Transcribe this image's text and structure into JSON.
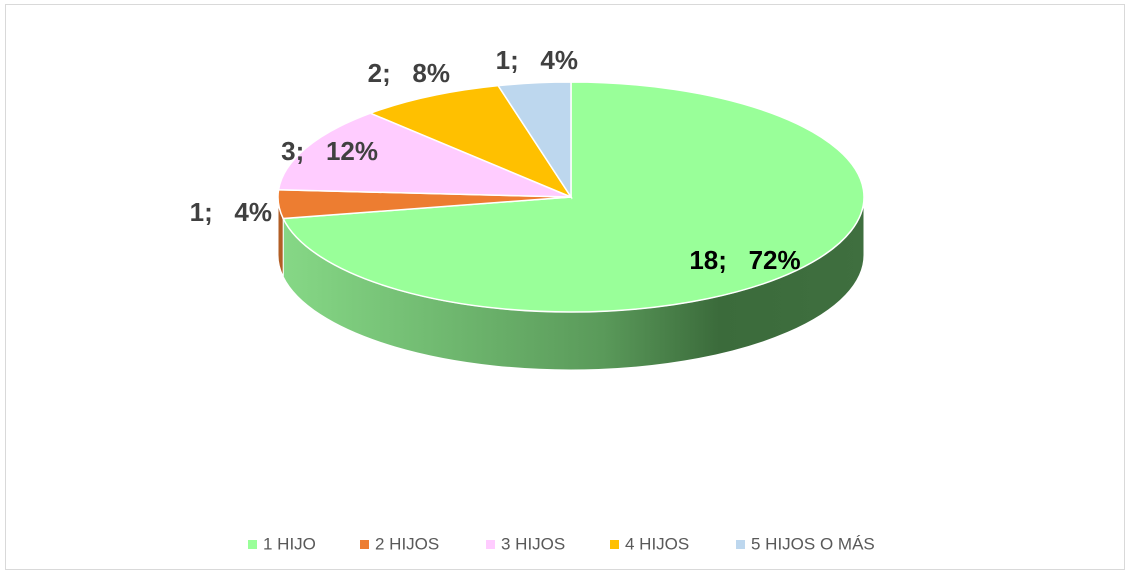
{
  "chart_data": {
    "type": "pie",
    "categories": [
      "1 HIJO",
      "2 HIJOS",
      "3 HIJOS",
      "4 HIJOS",
      "5 HIJOS O MÁS"
    ],
    "values": [
      18,
      1,
      3,
      2,
      1
    ],
    "value_labels": [
      "18;   72%",
      "1;   4%",
      "3;   12%",
      "2;   8%",
      "1;   4%"
    ],
    "colors": [
      "#99ff99",
      "#ed7d31",
      "#ffccff",
      "#ffc000",
      "#bdd7ee"
    ],
    "legend": "bottom"
  }
}
